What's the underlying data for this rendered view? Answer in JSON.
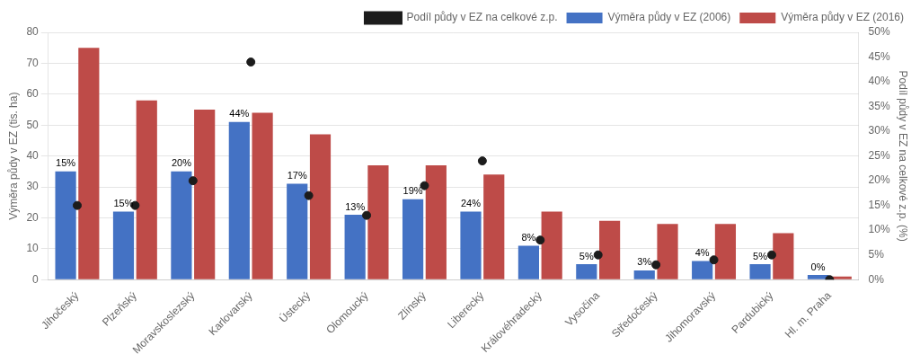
{
  "chart_data": {
    "type": "bar",
    "categories": [
      "Jihočeský",
      "Plzeňský",
      "Moravskoslezský",
      "Karlovarský",
      "Ústecký",
      "Olomoucký",
      "Zlínský",
      "Liberecký",
      "Královéhradecký",
      "Vysočina",
      "Středočeský",
      "Jihomoravský",
      "Pardubický",
      "Hl. m. Praha"
    ],
    "series": [
      {
        "name": "Výměra půdy v EZ (2006)",
        "color": "#4472C4",
        "values": [
          35,
          22,
          35,
          51,
          31,
          21,
          26,
          22,
          11,
          5,
          3,
          6,
          5,
          1.5
        ]
      },
      {
        "name": "Výměra půdy v EZ (2016)",
        "color": "#BE4B48",
        "values": [
          75,
          58,
          55,
          54,
          47,
          37,
          37,
          34,
          22,
          19,
          18,
          18,
          15,
          1
        ]
      },
      {
        "name": "Podíl půdy v EZ na celkové z.p.",
        "type": "scatter",
        "axis": "y2",
        "color": "#1C1C1C",
        "marker": "circle",
        "values": [
          15,
          15,
          20,
          44,
          17,
          13,
          19,
          24,
          8,
          5,
          3,
          4,
          5,
          0
        ],
        "value_labels": [
          "15%",
          "15%",
          "20%",
          "44%",
          "17%",
          "13%",
          "19%",
          "24%",
          "8%",
          "5%",
          "3%",
          "4%",
          "5%",
          "0%"
        ],
        "data_labels": true
      }
    ],
    "ylabel": "Výměra půdy v EZ (tis. ha)",
    "y2label": "Podíl půdy v EZ na celkové z.p. (%)",
    "ylim": [
      0,
      80
    ],
    "yticks": [
      0,
      10,
      20,
      30,
      40,
      50,
      60,
      70,
      80
    ],
    "y2lim": [
      0,
      50
    ],
    "y2ticks": [
      {
        "value": 0,
        "label": "0%"
      },
      {
        "value": 5,
        "label": "5%"
      },
      {
        "value": 10,
        "label": "10%"
      },
      {
        "value": 15,
        "label": "15%"
      },
      {
        "value": 20,
        "label": "20%"
      },
      {
        "value": 25,
        "label": "25%"
      },
      {
        "value": 30,
        "label": "30%"
      },
      {
        "value": 35,
        "label": "35%"
      },
      {
        "value": 40,
        "label": "40%"
      },
      {
        "value": 45,
        "label": "45%"
      },
      {
        "value": 50,
        "label": "50%"
      }
    ],
    "grid": true,
    "legend": "upper right"
  }
}
